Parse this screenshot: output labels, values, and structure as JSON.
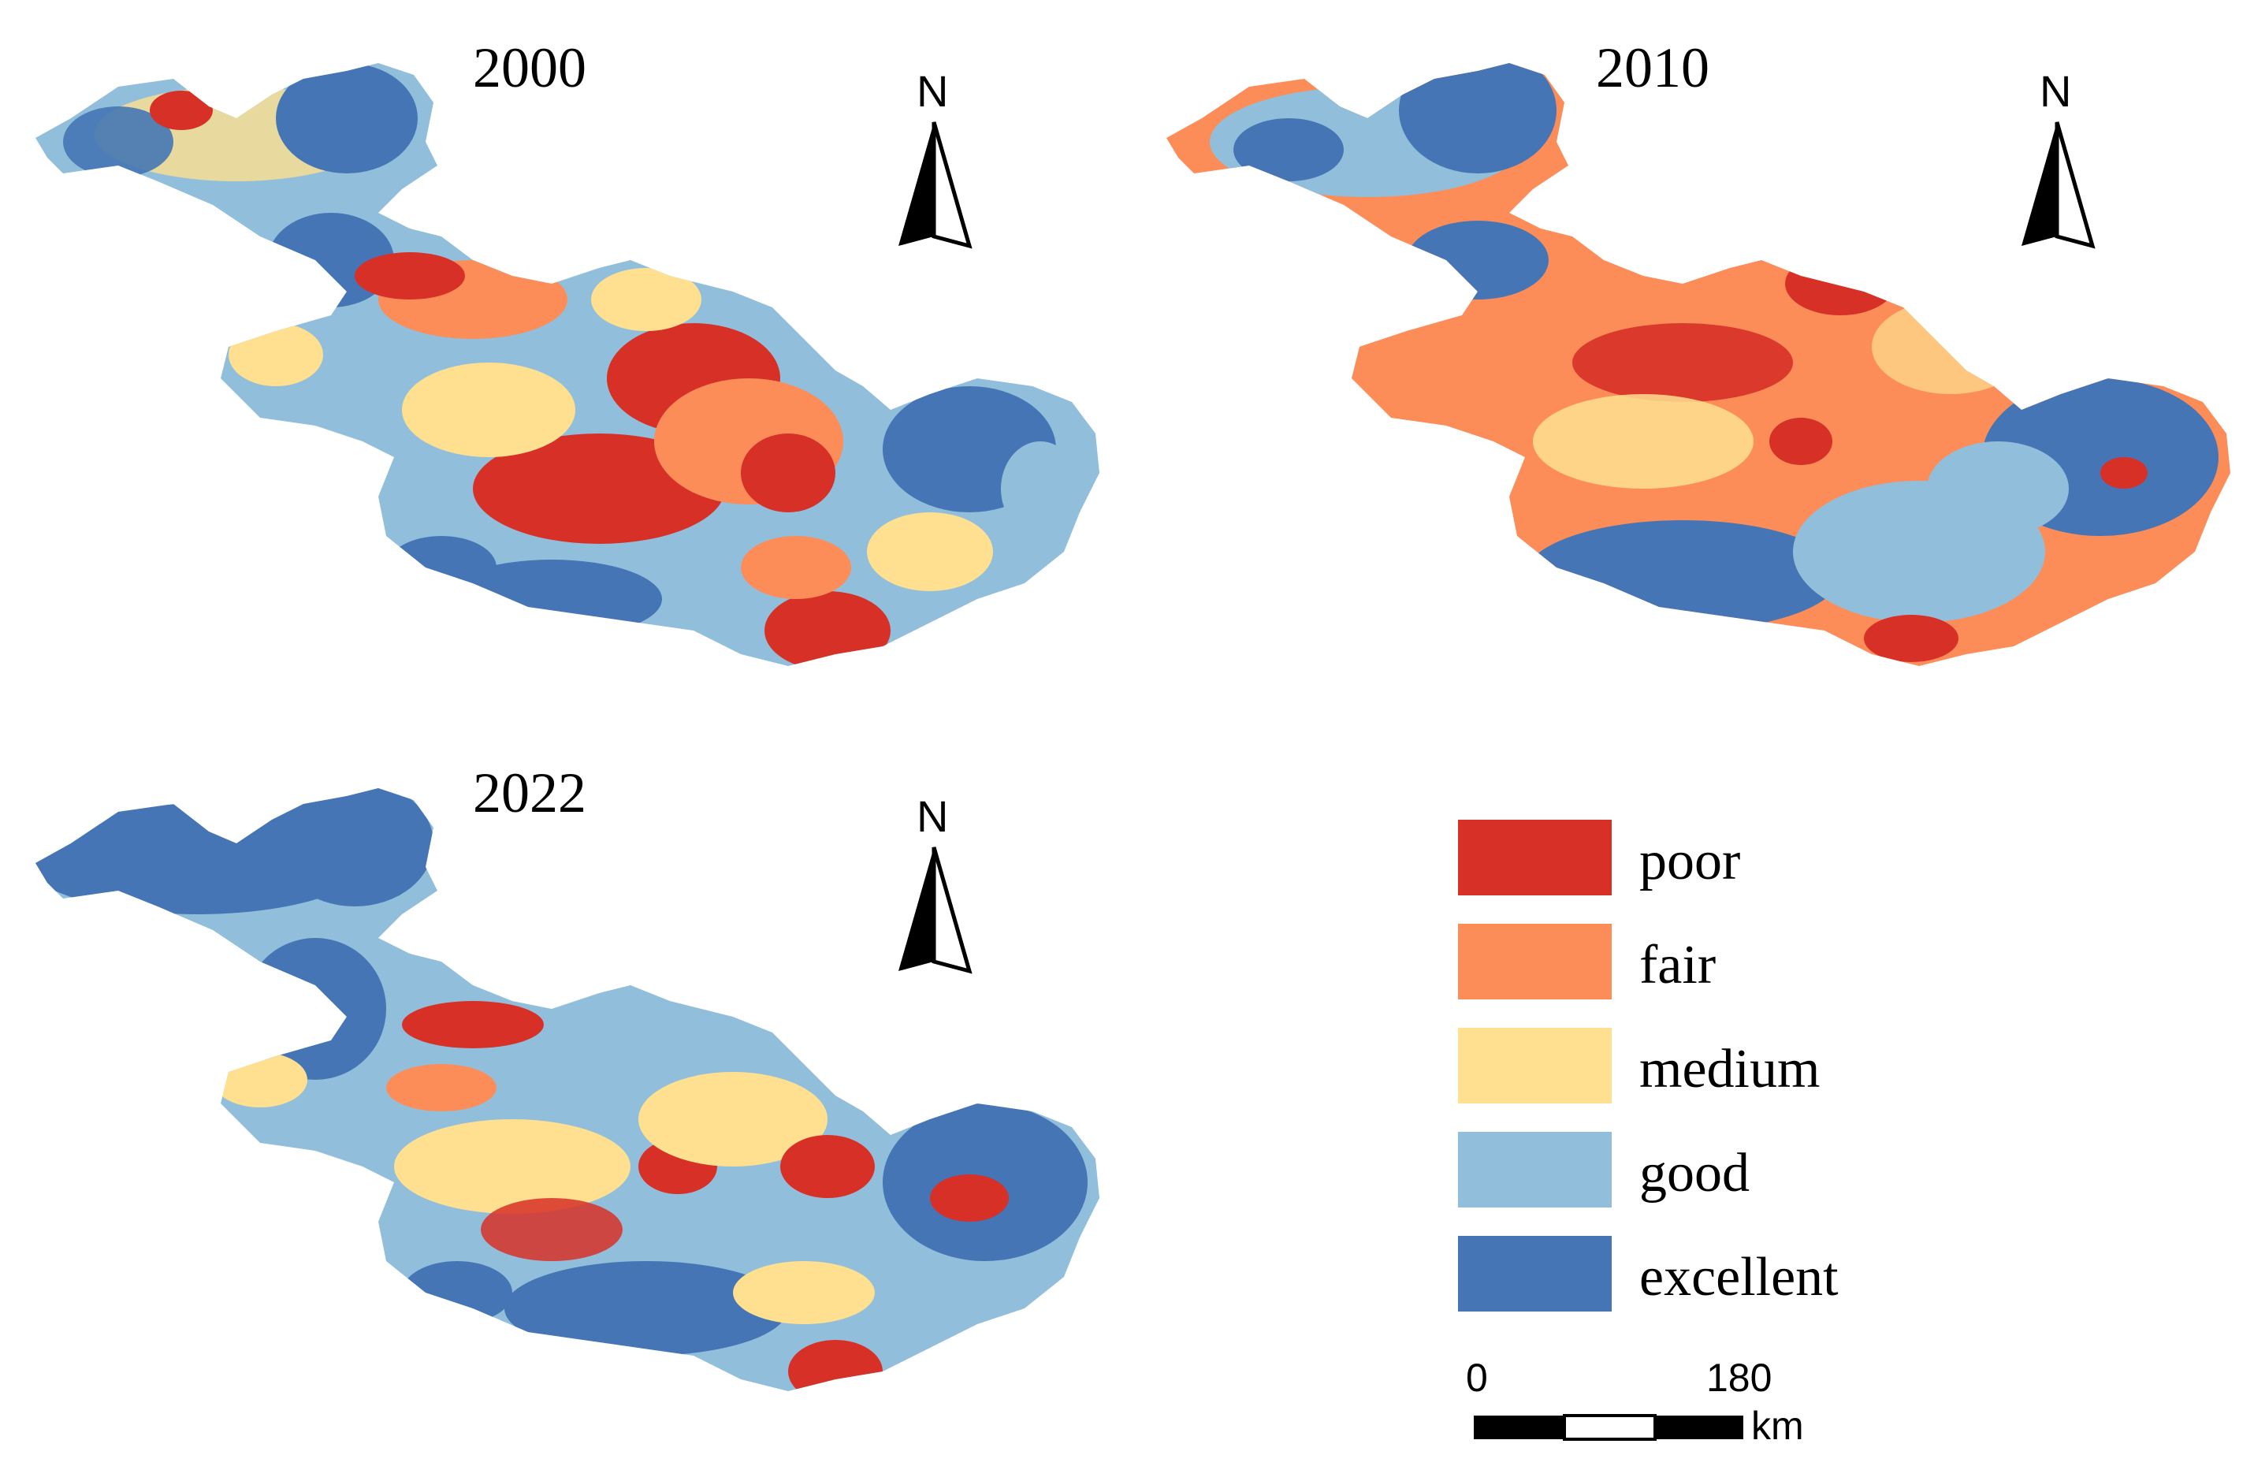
{
  "figure": {
    "panels": [
      {
        "year": "2000",
        "north_label": "N"
      },
      {
        "year": "2010",
        "north_label": "N"
      },
      {
        "year": "2022",
        "north_label": "N"
      }
    ],
    "legend": {
      "items": [
        {
          "label": "poor",
          "color": "#d73027"
        },
        {
          "label": "fair",
          "color": "#fc8d59"
        },
        {
          "label": "medium",
          "color": "#fee090"
        },
        {
          "label": "good",
          "color": "#91bfdb"
        },
        {
          "label": "excellent",
          "color": "#4575b4"
        }
      ]
    },
    "scale_bar": {
      "start": "0",
      "end": "180",
      "unit": "km"
    }
  }
}
